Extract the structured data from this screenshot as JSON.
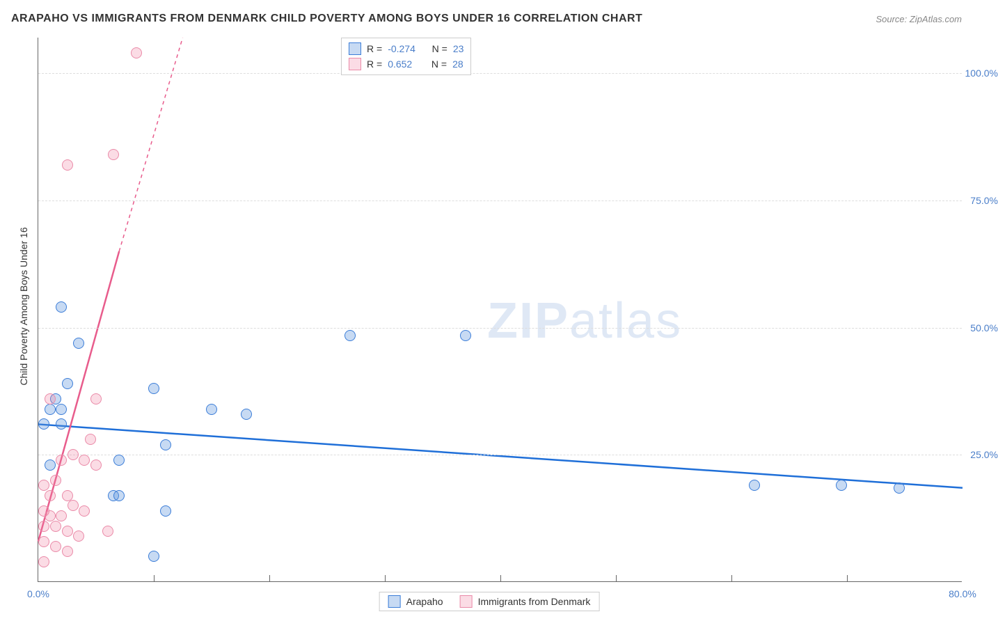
{
  "title": "ARAPAHO VS IMMIGRANTS FROM DENMARK CHILD POVERTY AMONG BOYS UNDER 16 CORRELATION CHART",
  "source": "Source: ZipAtlas.com",
  "y_axis_label": "Child Poverty Among Boys Under 16",
  "watermark": "ZIPatlas",
  "chart": {
    "type": "scatter",
    "xlim": [
      0,
      80
    ],
    "ylim": [
      0,
      107
    ],
    "x_ticks": [
      0,
      80
    ],
    "x_tick_labels": [
      "0.0%",
      "80.0%"
    ],
    "y_ticks": [
      25,
      50,
      75,
      100
    ],
    "y_tick_labels": [
      "25.0%",
      "50.0%",
      "75.0%",
      "100.0%"
    ],
    "x_minor_ticks": [
      10,
      20,
      30,
      40,
      50,
      60,
      70
    ],
    "background_color": "#ffffff",
    "grid_color": "#dddddd",
    "series": [
      {
        "name": "Arapaho",
        "color_fill": "rgba(95,150,220,0.35)",
        "color_stroke": "#3b7dd8",
        "marker_size": 16,
        "r_value": "-0.274",
        "n_value": "23",
        "regression": {
          "x1": 0,
          "y1": 31,
          "x2": 80,
          "y2": 18.5,
          "color": "#1f6fd8",
          "width": 2.5
        },
        "points": [
          [
            2,
            54
          ],
          [
            3.5,
            47
          ],
          [
            2.5,
            39
          ],
          [
            1.5,
            36
          ],
          [
            1,
            34
          ],
          [
            2,
            34
          ],
          [
            0.5,
            31
          ],
          [
            2,
            31
          ],
          [
            10,
            38
          ],
          [
            15,
            34
          ],
          [
            18,
            33
          ],
          [
            27,
            48.5
          ],
          [
            37,
            48.5
          ],
          [
            7,
            24
          ],
          [
            11,
            27
          ],
          [
            1,
            23
          ],
          [
            6.5,
            17
          ],
          [
            7,
            17
          ],
          [
            11,
            14
          ],
          [
            10,
            5
          ],
          [
            62,
            19
          ],
          [
            69.5,
            19
          ],
          [
            74.5,
            18.5
          ]
        ]
      },
      {
        "name": "Immigrants from Denmark",
        "color_fill": "rgba(240,130,160,0.28)",
        "color_stroke": "#ea8aa8",
        "marker_size": 16,
        "r_value": "0.652",
        "n_value": "28",
        "regression_solid": {
          "x1": 0,
          "y1": 8,
          "x2": 7,
          "y2": 65,
          "color": "#e85c8c",
          "width": 2.5
        },
        "regression_dash": {
          "x1": 7,
          "y1": 65,
          "x2": 12.5,
          "y2": 107,
          "color": "#e85c8c",
          "width": 1.5
        },
        "points": [
          [
            8.5,
            104
          ],
          [
            2.5,
            82
          ],
          [
            6.5,
            84
          ],
          [
            5,
            36
          ],
          [
            4.5,
            28
          ],
          [
            1,
            36
          ],
          [
            2,
            24
          ],
          [
            3,
            25
          ],
          [
            4,
            24
          ],
          [
            5,
            23
          ],
          [
            6,
            10
          ],
          [
            1.5,
            20
          ],
          [
            0.5,
            19
          ],
          [
            1,
            17
          ],
          [
            2.5,
            17
          ],
          [
            3,
            15
          ],
          [
            0.5,
            14
          ],
          [
            1,
            13
          ],
          [
            2,
            13
          ],
          [
            4,
            14
          ],
          [
            0.5,
            11
          ],
          [
            1.5,
            11
          ],
          [
            2.5,
            10
          ],
          [
            3.5,
            9
          ],
          [
            0.5,
            8
          ],
          [
            1.5,
            7
          ],
          [
            2.5,
            6
          ],
          [
            0.5,
            4
          ]
        ]
      }
    ]
  },
  "stats_labels": {
    "r": "R =",
    "n": "N ="
  },
  "legend": {
    "series1": "Arapaho",
    "series2": "Immigrants from Denmark"
  }
}
